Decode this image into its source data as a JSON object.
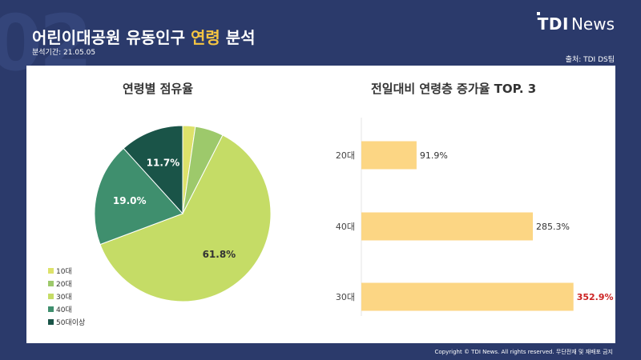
{
  "header": {
    "section_number": "02",
    "title_pre": "어린이대공원 유동인구 ",
    "title_highlight": "연령",
    "title_post": " 분석",
    "period": "분석기간: 21.05.05",
    "logo_tdi": "TDI",
    "logo_news": "News",
    "source": "출처: TDI DS팀"
  },
  "footer": {
    "copyright": "Copyright © TDI News. All rights reserved. 무단전재 및 재배포 금지"
  },
  "colors": {
    "background": "#2b3a6b",
    "title_highlight": "#f5c542",
    "bar": "#fcd684",
    "top_value": "#cc2222"
  },
  "chart_data": [
    {
      "type": "pie",
      "title": "연령별 점유율",
      "categories": [
        "10대",
        "20대",
        "30대",
        "40대",
        "50대이상"
      ],
      "values": [
        2.3,
        5.2,
        61.8,
        19.0,
        11.7
      ],
      "labels": [
        "",
        "",
        "61.8%",
        "19.0%",
        "11.7%"
      ],
      "colors": [
        "#dde26a",
        "#9dc96b",
        "#c5dc66",
        "#3f8f6e",
        "#1a5448"
      ],
      "legend_position": "bottom-left"
    },
    {
      "type": "bar",
      "orientation": "horizontal",
      "title": "전일대비 연령층 증가율 TOP. 3",
      "categories": [
        "20대",
        "40대",
        "30대"
      ],
      "values": [
        91.9,
        285.3,
        352.9
      ],
      "labels": [
        "91.9%",
        "285.3%",
        "352.9%"
      ],
      "highlight_index": 2,
      "xlim": [
        0,
        400
      ],
      "grid": false
    }
  ]
}
